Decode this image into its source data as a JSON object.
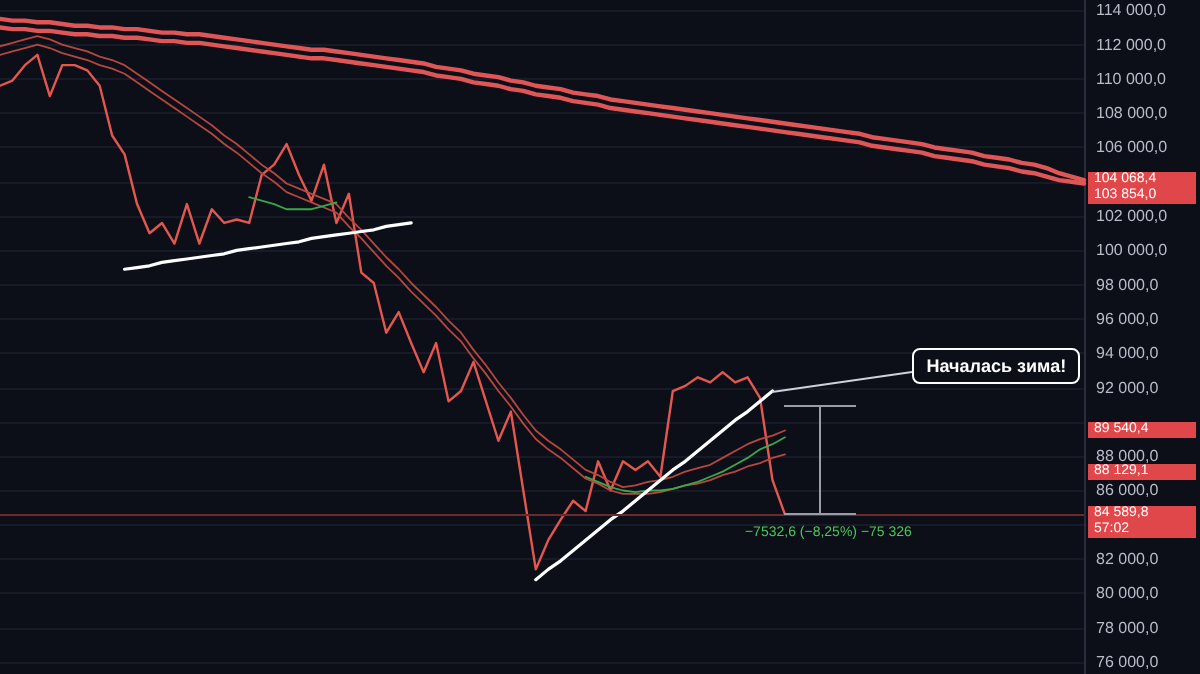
{
  "chart_data": {
    "type": "line",
    "categories": [
      null,
      null,
      null,
      null,
      null,
      null,
      null,
      null,
      null,
      null,
      null,
      null,
      null,
      null,
      null,
      null,
      null,
      null,
      null,
      null,
      null,
      null,
      null,
      null,
      null,
      null,
      null,
      null,
      null,
      null,
      null,
      null,
      null,
      null,
      null,
      null,
      null,
      null,
      null,
      null,
      null,
      null,
      null,
      null,
      null,
      null,
      null,
      null,
      null,
      null,
      null,
      null,
      null,
      null,
      null,
      null,
      null,
      null,
      null,
      null,
      null,
      null,
      null,
      null,
      null,
      null,
      null,
      null,
      null,
      null,
      null,
      null,
      null,
      null,
      null,
      null,
      null,
      null,
      null,
      null,
      null,
      null,
      null,
      null,
      null,
      null,
      null,
      null
    ],
    "tick_labels": "y",
    "ylim": [
      75300,
      114600
    ],
    "yticks": [
      {
        "value": 76000,
        "label": "76 000,0"
      },
      {
        "value": 78000,
        "label": "78 000,0"
      },
      {
        "value": 80000,
        "label": "80 000,0"
      },
      {
        "value": 82000,
        "label": "82 000,0"
      },
      {
        "value": 84000,
        "label": null
      },
      {
        "value": 86000,
        "label": "86 000,0"
      },
      {
        "value": 88000,
        "label": "88 000,0"
      },
      {
        "value": 90000,
        "label": null
      },
      {
        "value": 92000,
        "label": "92 000,0"
      },
      {
        "value": 94000,
        "label": "94 000,0"
      },
      {
        "value": 96000,
        "label": "96 000,0"
      },
      {
        "value": 98000,
        "label": "98 000,0"
      },
      {
        "value": 100000,
        "label": "100 000,0"
      },
      {
        "value": 102000,
        "label": "102 000,0"
      },
      {
        "value": 104000,
        "label": null
      },
      {
        "value": 106000,
        "label": "106 000,0"
      },
      {
        "value": 108000,
        "label": "108 000,0"
      },
      {
        "value": 110000,
        "label": "110 000,0"
      },
      {
        "value": 112000,
        "label": "112 000,0"
      },
      {
        "value": 114000,
        "label": "114 000,0"
      }
    ],
    "grid": "y",
    "line_style": "solid",
    "series": [
      {
        "color": "#e4574f",
        "values": [
          109600,
          109900,
          110800,
          111400,
          109000,
          110800,
          110800,
          110500,
          109600,
          106700,
          105600,
          102700,
          101000,
          101600,
          100400,
          102700,
          100400,
          102400,
          101600,
          101800,
          101600,
          104400,
          105000,
          106200,
          104400,
          102900,
          105000,
          101600,
          103300,
          98700,
          98100,
          95200,
          96400,
          94600,
          92900,
          94600,
          91200,
          91800,
          93500,
          91200,
          88900,
          90600,
          86000,
          81400,
          83100,
          84300,
          85400,
          84800,
          87700,
          86000,
          87700,
          87200,
          87700,
          86800,
          91800,
          92100,
          92600,
          92300,
          92900,
          92300,
          92600,
          91400,
          86600,
          84600,
          null,
          null,
          null,
          null,
          null,
          null,
          null,
          null,
          null,
          null,
          null,
          null,
          null,
          null,
          null,
          null,
          null,
          null,
          null,
          null,
          null,
          null,
          null,
          null
        ]
      },
      {
        "color": "#b5473f",
        "values": [
          111900,
          112100,
          112300,
          112500,
          112300,
          112000,
          111800,
          111600,
          111300,
          111100,
          110800,
          110300,
          109800,
          109300,
          108800,
          108300,
          107800,
          107300,
          106700,
          106200,
          105600,
          105000,
          104500,
          103900,
          103600,
          103300,
          103000,
          102700,
          101900,
          101200,
          100400,
          99600,
          98900,
          98100,
          97400,
          96700,
          95900,
          95200,
          94200,
          93300,
          92300,
          91400,
          90400,
          89500,
          88900,
          88400,
          87800,
          87200,
          86900,
          86500,
          86200,
          86300,
          86500,
          86600,
          86800,
          87100,
          87300,
          87500,
          87900,
          88300,
          88700,
          89000,
          89200,
          89500,
          null,
          null,
          null,
          null,
          null,
          null,
          null,
          null,
          null,
          null,
          null,
          null,
          null,
          null,
          null,
          null,
          null,
          null,
          null,
          null,
          null,
          null,
          null,
          null
        ]
      },
      {
        "color": "#b5473f",
        "values": [
          111400,
          111600,
          111800,
          112000,
          111800,
          111500,
          111300,
          111100,
          110800,
          110600,
          110300,
          109800,
          109300,
          108800,
          108300,
          107800,
          107300,
          106800,
          106200,
          105700,
          105100,
          104500,
          104000,
          103400,
          103100,
          102800,
          102500,
          102200,
          101400,
          100700,
          99900,
          99100,
          98400,
          97600,
          96900,
          96200,
          95400,
          94700,
          93700,
          92800,
          91800,
          90900,
          89900,
          89000,
          88400,
          87900,
          87300,
          86700,
          86400,
          86000,
          85800,
          85800,
          85800,
          85900,
          86100,
          86300,
          86400,
          86600,
          86900,
          87100,
          87400,
          87600,
          87900,
          88100,
          null,
          null,
          null,
          null,
          null,
          null,
          null,
          null,
          null,
          null,
          null,
          null,
          null,
          null,
          null,
          null,
          null,
          null,
          null,
          null,
          null,
          null,
          null,
          null
        ]
      },
      {
        "color": "#3aa84a",
        "values": [
          null,
          null,
          null,
          null,
          null,
          null,
          null,
          null,
          null,
          null,
          null,
          null,
          null,
          null,
          null,
          null,
          null,
          null,
          null,
          null,
          103100,
          102900,
          102700,
          102400,
          102400,
          102400,
          102600,
          102800,
          null,
          null,
          null,
          null,
          null,
          null,
          null,
          null,
          null,
          null,
          null,
          null,
          null,
          null,
          null,
          null,
          null,
          null,
          null,
          null,
          null,
          null,
          null,
          null,
          null,
          null,
          null,
          null,
          null,
          null,
          null,
          null,
          null,
          null,
          null,
          null,
          null,
          null,
          null,
          null,
          null,
          null,
          null,
          null,
          null,
          null,
          null,
          null,
          null,
          null,
          null,
          null,
          null,
          null,
          null,
          null,
          null,
          null,
          null,
          null
        ]
      },
      {
        "color": "#3aa84a",
        "values": [
          null,
          null,
          null,
          null,
          null,
          null,
          null,
          null,
          null,
          null,
          null,
          null,
          null,
          null,
          null,
          null,
          null,
          null,
          null,
          null,
          null,
          null,
          null,
          null,
          null,
          null,
          null,
          null,
          null,
          null,
          null,
          null,
          null,
          null,
          null,
          null,
          null,
          null,
          null,
          null,
          null,
          null,
          null,
          null,
          null,
          null,
          null,
          86800,
          86500,
          86200,
          86000,
          85900,
          86000,
          86000,
          86100,
          86300,
          86500,
          86800,
          87100,
          87500,
          87900,
          88400,
          88700,
          89100,
          null,
          null,
          null,
          null,
          null,
          null,
          null,
          null,
          null,
          null,
          null,
          null,
          null,
          null,
          null,
          null,
          null,
          null,
          null,
          null,
          null,
          null,
          null,
          null
        ]
      },
      {
        "color": "#e05555",
        "values": [
          113500,
          113400,
          113400,
          113300,
          113300,
          113200,
          113100,
          113100,
          113000,
          113000,
          112900,
          112900,
          112800,
          112700,
          112700,
          112600,
          112600,
          112500,
          112400,
          112300,
          112200,
          112100,
          112000,
          111900,
          111800,
          111700,
          111700,
          111600,
          111500,
          111400,
          111300,
          111200,
          111100,
          111000,
          110900,
          110700,
          110600,
          110500,
          110300,
          110200,
          110100,
          109900,
          109800,
          109600,
          109500,
          109400,
          109200,
          109100,
          109000,
          108800,
          108700,
          108600,
          108500,
          108400,
          108300,
          108200,
          108100,
          108000,
          107900,
          107800,
          107700,
          107600,
          107500,
          107400,
          107300,
          107200,
          107100,
          107000,
          106900,
          106800,
          106600,
          106500,
          106400,
          106300,
          106200,
          106000,
          105900,
          105800,
          105700,
          105500,
          105400,
          105300,
          105100,
          105000,
          104800,
          104500,
          104300,
          104100
        ]
      },
      {
        "color": "#e05555",
        "values": [
          113000,
          112900,
          112900,
          112800,
          112800,
          112700,
          112600,
          112600,
          112500,
          112500,
          112400,
          112400,
          112300,
          112200,
          112200,
          112100,
          112100,
          112000,
          111900,
          111800,
          111700,
          111600,
          111500,
          111400,
          111300,
          111200,
          111200,
          111100,
          111000,
          110900,
          110800,
          110700,
          110600,
          110500,
          110400,
          110200,
          110100,
          110000,
          109800,
          109700,
          109600,
          109400,
          109300,
          109100,
          109000,
          108900,
          108700,
          108600,
          108500,
          108300,
          108200,
          108100,
          108000,
          107900,
          107800,
          107700,
          107600,
          107500,
          107400,
          107300,
          107200,
          107100,
          107000,
          106900,
          106800,
          106700,
          106600,
          106500,
          106400,
          106300,
          106100,
          106000,
          105900,
          105800,
          105700,
          105500,
          105400,
          105300,
          105200,
          105000,
          104900,
          104800,
          104600,
          104500,
          104300,
          104100,
          104000,
          103900
        ]
      },
      {
        "color": "#ffffff",
        "values": [
          null,
          null,
          null,
          null,
          null,
          null,
          null,
          null,
          null,
          null,
          98900,
          99000,
          99100,
          99300,
          99400,
          99500,
          99600,
          99700,
          99800,
          100000,
          100100,
          100200,
          100300,
          100400,
          100500,
          100700,
          100800,
          100900,
          101000,
          101100,
          101200,
          101400,
          101500,
          101600,
          null,
          null,
          null,
          null,
          null,
          null,
          null,
          null,
          null,
          null,
          null,
          null,
          null,
          null,
          null,
          null,
          null,
          null,
          null,
          null,
          null,
          null,
          null,
          null,
          null,
          null,
          null,
          null,
          null,
          null,
          null,
          null,
          null,
          null,
          null,
          null,
          null,
          null,
          null,
          null,
          null,
          null,
          null,
          null,
          null,
          null,
          null,
          null,
          null,
          null,
          null,
          null,
          null,
          null
        ]
      },
      {
        "color": "#ffffff",
        "values": [
          null,
          null,
          null,
          null,
          null,
          null,
          null,
          null,
          null,
          null,
          null,
          null,
          null,
          null,
          null,
          null,
          null,
          null,
          null,
          null,
          null,
          null,
          null,
          null,
          null,
          null,
          null,
          null,
          null,
          null,
          null,
          null,
          null,
          null,
          null,
          null,
          null,
          null,
          null,
          null,
          null,
          null,
          null,
          80800,
          81400,
          81900,
          82500,
          83100,
          83700,
          84300,
          84800,
          85400,
          86000,
          86600,
          87200,
          87700,
          88300,
          88900,
          89500,
          90100,
          90600,
          91200,
          91800,
          null,
          null,
          null,
          null,
          null,
          null,
          null,
          null,
          null,
          null,
          null,
          null,
          null,
          null,
          null,
          null,
          null,
          null,
          null,
          null,
          null,
          null,
          null,
          null,
          null
        ]
      }
    ],
    "ref_lines": [
      {
        "axis": "y",
        "value": 84589.8,
        "color": "#6e2a2a"
      }
    ],
    "annotations": [
      "Началась зима!",
      "−7532,6 (−8,25%) −75 326",
      "104 068,4",
      "103 854,0",
      "89 540,4",
      "88 129,1",
      "84 589,8",
      "57:02"
    ]
  }
}
